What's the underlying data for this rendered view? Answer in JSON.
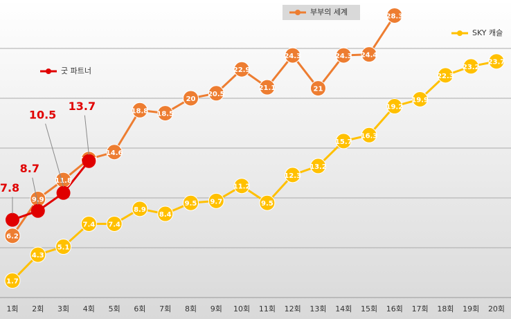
{
  "chart_data": {
    "type": "line",
    "categories": [
      "1회",
      "2회",
      "3회",
      "4회",
      "5회",
      "6회",
      "7회",
      "8회",
      "9회",
      "10회",
      "11회",
      "12회",
      "13회",
      "14회",
      "15회",
      "16회",
      "17회",
      "18회",
      "19회",
      "20회"
    ],
    "series": [
      {
        "name": "부부의 세계",
        "color": "#ed7d31",
        "values": [
          6.2,
          9.9,
          11.8,
          13.9,
          14.6,
          18.8,
          18.5,
          20,
          20.5,
          22.9,
          21.1,
          24.3,
          21,
          24.3,
          24.4,
          28.3,
          null,
          null,
          null,
          null
        ]
      },
      {
        "name": "SKY 캐슬",
        "color": "#ffc000",
        "values": [
          1.7,
          4.3,
          5.1,
          7.4,
          7.4,
          8.9,
          8.4,
          9.5,
          9.7,
          11.2,
          9.5,
          12.3,
          13.2,
          15.7,
          16.3,
          19.2,
          19.9,
          22.3,
          23.2,
          23.7
        ]
      },
      {
        "name": "굿 파트너",
        "color": "#e00000",
        "values": [
          7.8,
          8.7,
          10.5,
          13.7,
          null,
          null,
          null,
          null,
          null,
          null,
          null,
          null,
          null,
          null,
          null,
          null,
          null,
          null,
          null,
          null
        ]
      }
    ],
    "ylim": [
      0,
      30
    ],
    "yticks": [
      0,
      5,
      10,
      15,
      20,
      25,
      30
    ],
    "grid": true
  }
}
